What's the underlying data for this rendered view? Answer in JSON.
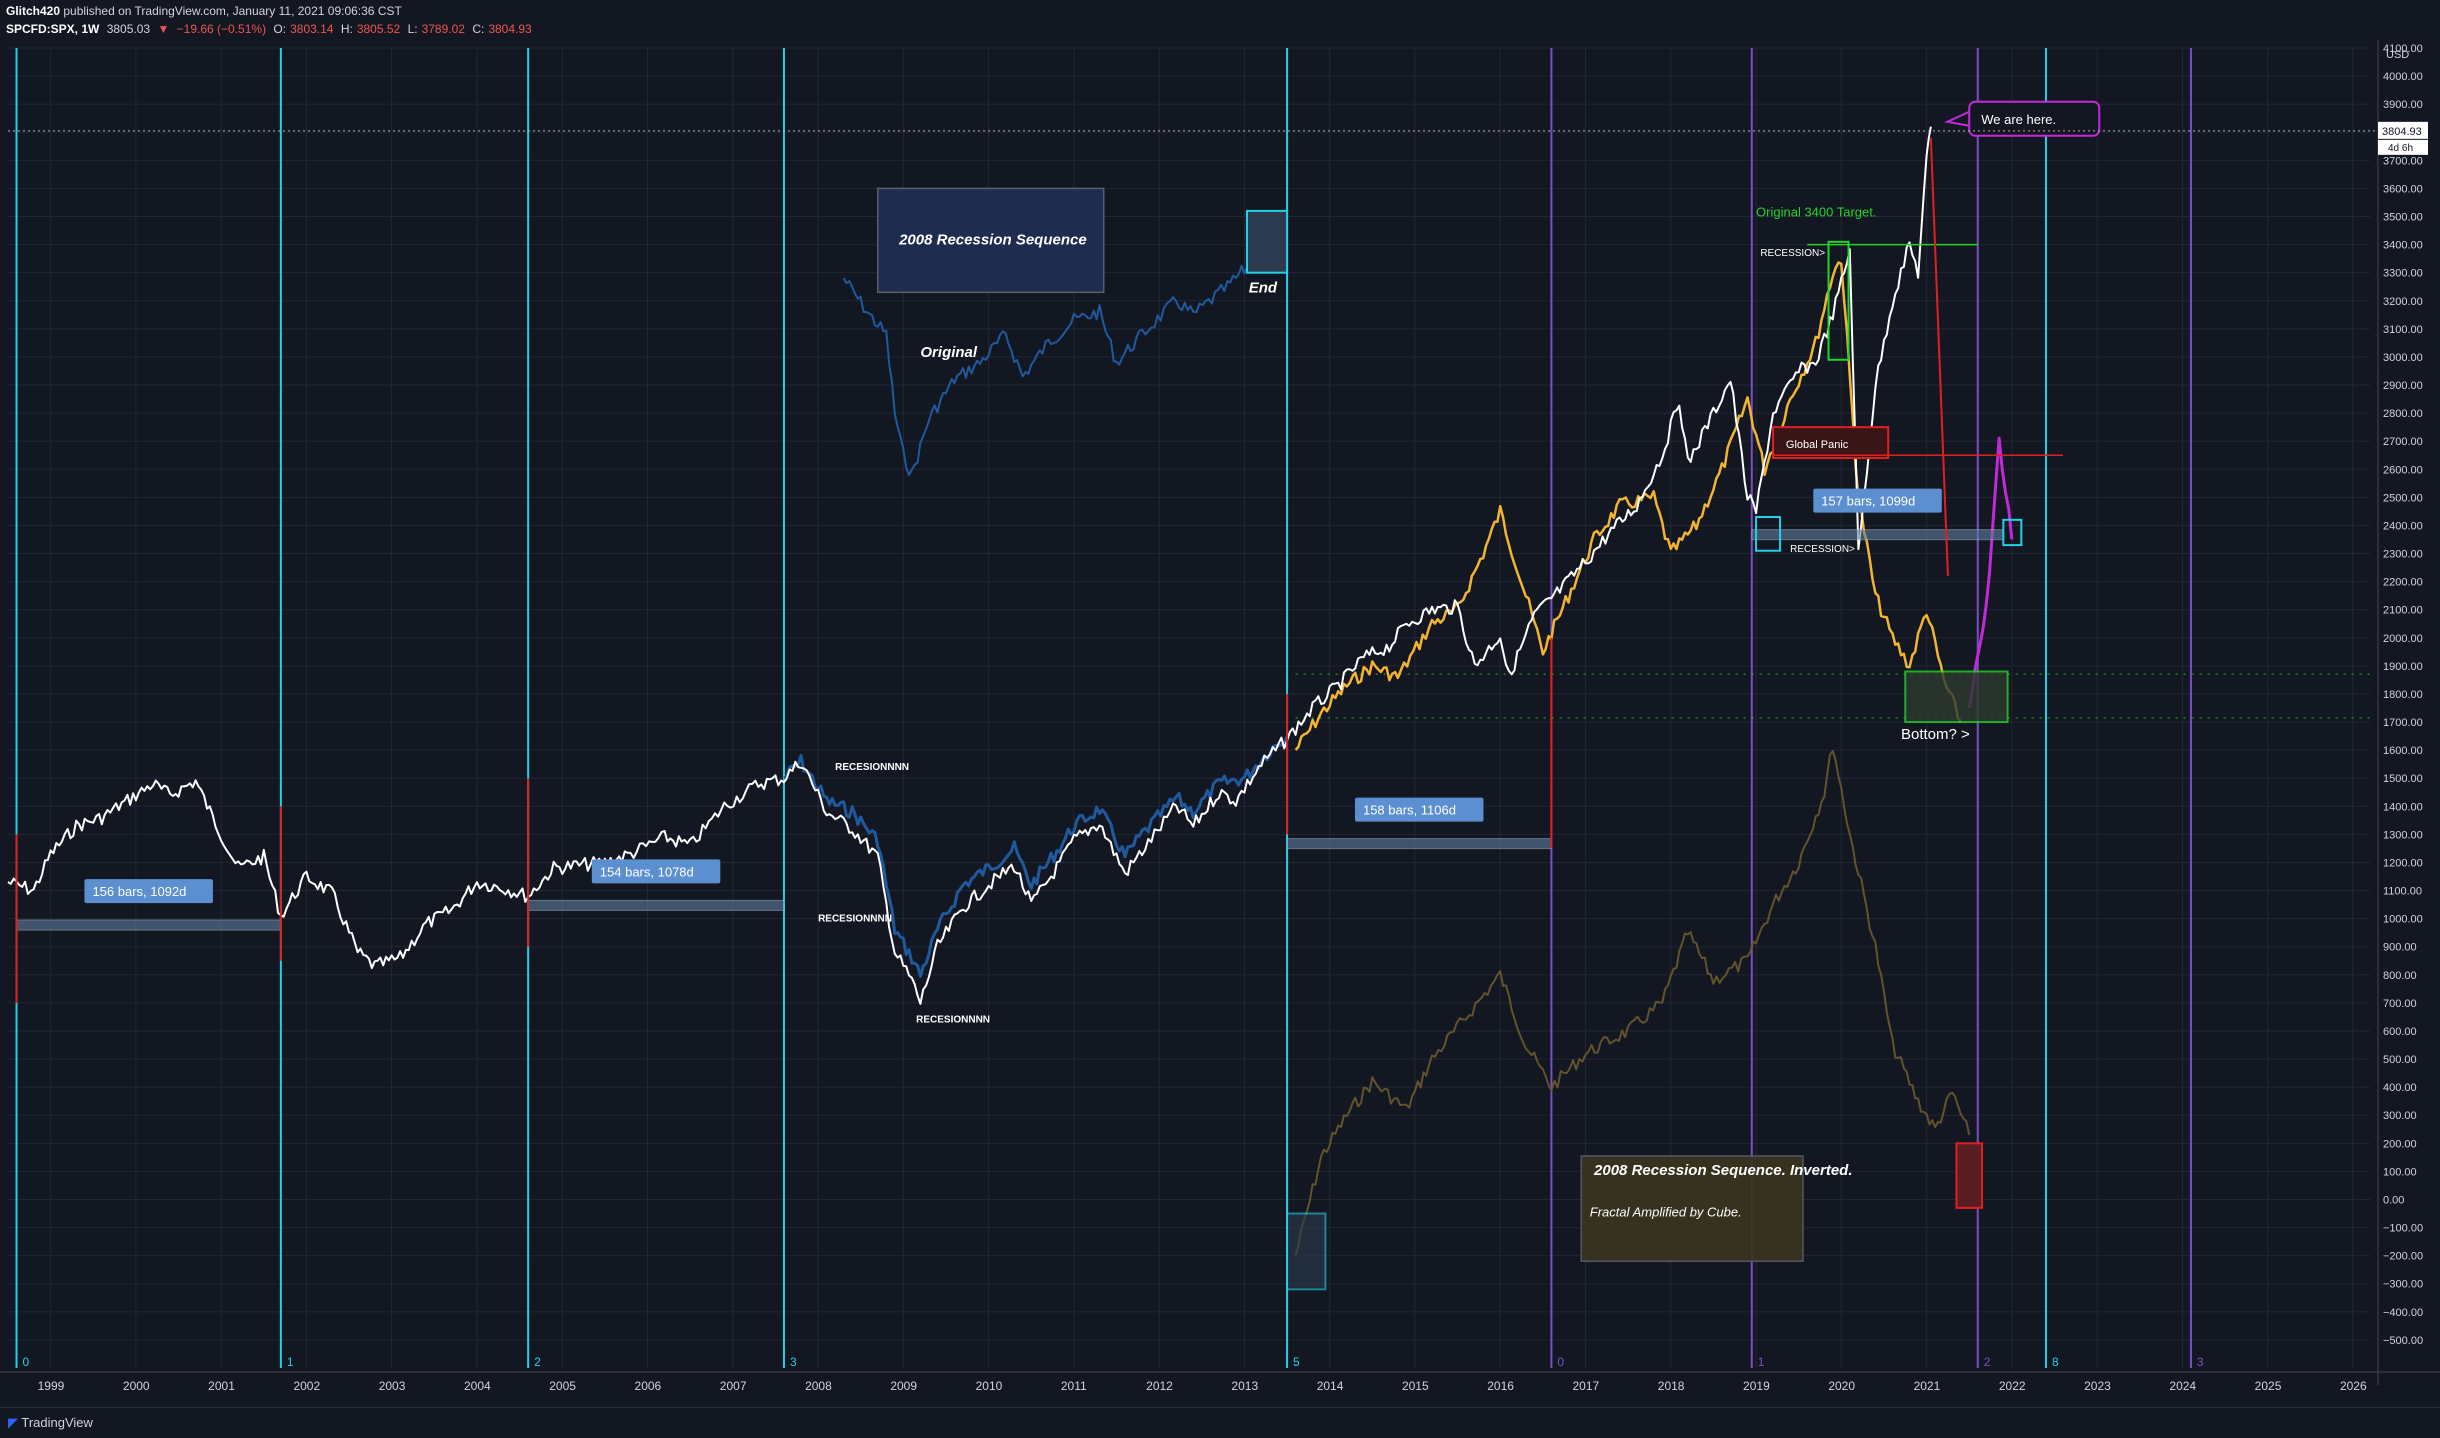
{
  "header": {
    "author": "Glitch420",
    "published": "published on TradingView.com, January 11, 2021 09:06:36 CST",
    "symbol": "SPCFD:SPX, 1W",
    "last": "3805.03",
    "change_arrow": "▼",
    "change": "−19.66 (−0.51%)",
    "o_label": "O:",
    "o": "3803.14",
    "h_label": "H:",
    "h": "3805.52",
    "l_label": "L:",
    "l": "3789.02",
    "c_label": "C:",
    "c": "3804.93"
  },
  "footer": {
    "brand": "TradingView"
  },
  "colors": {
    "background": "#131722",
    "price": "#ffffff",
    "original": "#1f5a9e",
    "gold": "#f3b333",
    "inverted": "#6b5a2e",
    "cycle_cyan": "#22d1e6",
    "cycle_purple": "#7b4fc4",
    "red": "#e02020",
    "green": "#24d32a",
    "magenta": "#c02ad8"
  },
  "chart_data": {
    "type": "line",
    "symbol": "SPCFD:SPX",
    "interval": "1W",
    "currency": "USD",
    "x_ticks": [
      "1999",
      "2000",
      "2001",
      "2002",
      "2003",
      "2004",
      "2005",
      "2006",
      "2007",
      "2008",
      "2009",
      "2010",
      "2011",
      "2012",
      "2013",
      "2014",
      "2015",
      "2016",
      "2017",
      "2018",
      "2019",
      "2020",
      "2021",
      "2022",
      "2023",
      "2024",
      "2025",
      "2026"
    ],
    "xlim": [
      1998.5,
      2026.2
    ],
    "ylim": [
      -600,
      4100
    ],
    "y_ticks": [
      4100,
      4000,
      3900,
      3800,
      3700,
      3600,
      3500,
      3400,
      3300,
      3200,
      3100,
      3000,
      2900,
      2800,
      2700,
      2600,
      2500,
      2400,
      2300,
      2200,
      2100,
      2000,
      1900,
      1800,
      1700,
      1600,
      1500,
      1400,
      1300,
      1200,
      1100,
      1000,
      900,
      800,
      700,
      600,
      500,
      400,
      300,
      200,
      100,
      0,
      -100,
      -200,
      -300,
      -400,
      -500
    ],
    "y_tick_labels": [
      "4100.00",
      "4000.00",
      "3900.00",
      "3800.00",
      "3700.00",
      "3600.00",
      "3500.00",
      "3400.00",
      "3300.00",
      "3200.00",
      "3100.00",
      "3000.00",
      "2900.00",
      "2800.00",
      "2700.00",
      "2600.00",
      "2500.00",
      "2400.00",
      "2300.00",
      "2200.00",
      "2100.00",
      "2000.00",
      "1900.00",
      "1800.00",
      "1700.00",
      "1600.00",
      "1500.00",
      "1400.00",
      "1300.00",
      "1200.00",
      "1100.00",
      "1000.00",
      "900.00",
      "800.00",
      "700.00",
      "600.00",
      "500.00",
      "400.00",
      "300.00",
      "200.00",
      "100.00",
      "0.00",
      "−100.00",
      "−200.00",
      "−300.00",
      "−400.00",
      "−500.00"
    ],
    "axis_label_top": "USD",
    "last_price_label": "3804.93",
    "countdown_label": "4d 6h",
    "grid": true,
    "series": [
      {
        "role": "price",
        "points": [
          [
            1998.5,
            1130
          ],
          [
            1998.8,
            1100
          ],
          [
            1999.0,
            1230
          ],
          [
            1999.3,
            1330
          ],
          [
            1999.6,
            1360
          ],
          [
            1999.9,
            1420
          ],
          [
            2000.2,
            1480
          ],
          [
            2000.4,
            1440
          ],
          [
            2000.7,
            1490
          ],
          [
            2000.9,
            1360
          ],
          [
            2001.2,
            1180
          ],
          [
            2001.5,
            1220
          ],
          [
            2001.7,
            1010
          ],
          [
            2002.0,
            1150
          ],
          [
            2002.3,
            1090
          ],
          [
            2002.6,
            880
          ],
          [
            2002.8,
            830
          ],
          [
            2003.1,
            860
          ],
          [
            2003.4,
            980
          ],
          [
            2003.7,
            1030
          ],
          [
            2004.0,
            1130
          ],
          [
            2004.3,
            1110
          ],
          [
            2004.6,
            1080
          ],
          [
            2004.9,
            1180
          ],
          [
            2005.2,
            1190
          ],
          [
            2005.5,
            1200
          ],
          [
            2005.8,
            1230
          ],
          [
            2006.2,
            1290
          ],
          [
            2006.5,
            1260
          ],
          [
            2006.9,
            1400
          ],
          [
            2007.3,
            1480
          ],
          [
            2007.6,
            1500
          ],
          [
            2007.8,
            1560
          ],
          [
            2008.1,
            1380
          ],
          [
            2008.4,
            1320
          ],
          [
            2008.7,
            1220
          ],
          [
            2008.9,
            880
          ],
          [
            2009.1,
            780
          ],
          [
            2009.2,
            700
          ],
          [
            2009.4,
            900
          ],
          [
            2009.7,
            1040
          ],
          [
            2010.0,
            1120
          ],
          [
            2010.3,
            1190
          ],
          [
            2010.5,
            1050
          ],
          [
            2010.8,
            1180
          ],
          [
            2011.0,
            1280
          ],
          [
            2011.3,
            1340
          ],
          [
            2011.6,
            1160
          ],
          [
            2011.8,
            1240
          ],
          [
            2012.2,
            1400
          ],
          [
            2012.4,
            1330
          ],
          [
            2012.7,
            1450
          ],
          [
            2012.9,
            1420
          ],
          [
            2013.2,
            1550
          ],
          [
            2013.5,
            1640
          ],
          [
            2013.8,
            1750
          ],
          [
            2014.1,
            1830
          ],
          [
            2014.4,
            1930
          ],
          [
            2014.7,
            1970
          ],
          [
            2014.9,
            2050
          ],
          [
            2015.2,
            2100
          ],
          [
            2015.5,
            2110
          ],
          [
            2015.7,
            1900
          ],
          [
            2016.0,
            2010
          ],
          [
            2016.1,
            1860
          ],
          [
            2016.4,
            2080
          ],
          [
            2016.7,
            2170
          ],
          [
            2017.0,
            2270
          ],
          [
            2017.3,
            2380
          ],
          [
            2017.6,
            2470
          ],
          [
            2017.9,
            2650
          ],
          [
            2018.1,
            2850
          ],
          [
            2018.2,
            2620
          ],
          [
            2018.5,
            2800
          ],
          [
            2018.7,
            2920
          ],
          [
            2018.9,
            2500
          ],
          [
            2019.0,
            2450
          ],
          [
            2019.2,
            2800
          ],
          [
            2019.5,
            2950
          ],
          [
            2019.7,
            2980
          ],
          [
            2019.9,
            3150
          ],
          [
            2020.1,
            3380
          ],
          [
            2020.2,
            2300
          ],
          [
            2020.4,
            2900
          ],
          [
            2020.6,
            3200
          ],
          [
            2020.8,
            3400
          ],
          [
            2020.9,
            3300
          ],
          [
            2021.0,
            3700
          ],
          [
            2021.05,
            3820
          ]
        ]
      },
      {
        "role": "original-2008-sequence",
        "points": [
          [
            2007.6,
            1500
          ],
          [
            2007.8,
            1560
          ],
          [
            2008.1,
            1420
          ],
          [
            2008.4,
            1380
          ],
          [
            2008.7,
            1280
          ],
          [
            2008.9,
            960
          ],
          [
            2009.1,
            860
          ],
          [
            2009.2,
            800
          ],
          [
            2009.4,
            960
          ],
          [
            2009.7,
            1120
          ],
          [
            2010.0,
            1180
          ],
          [
            2010.3,
            1250
          ],
          [
            2010.5,
            1120
          ],
          [
            2010.8,
            1240
          ],
          [
            2011.0,
            1330
          ],
          [
            2011.3,
            1390
          ],
          [
            2011.6,
            1220
          ],
          [
            2011.8,
            1300
          ],
          [
            2012.2,
            1430
          ],
          [
            2012.4,
            1380
          ],
          [
            2012.7,
            1480
          ],
          [
            2013.0,
            1500
          ],
          [
            2013.3,
            1600
          ],
          [
            2013.5,
            1650
          ]
        ]
      },
      {
        "role": "original-2008-sequence-overlay",
        "points": [
          [
            2008.3,
            3280
          ],
          [
            2008.6,
            3150
          ],
          [
            2008.8,
            3080
          ],
          [
            2008.9,
            2800
          ],
          [
            2009.0,
            2650
          ],
          [
            2009.1,
            2580
          ],
          [
            2009.3,
            2780
          ],
          [
            2009.6,
            2920
          ],
          [
            2009.9,
            2980
          ],
          [
            2010.2,
            3080
          ],
          [
            2010.4,
            2930
          ],
          [
            2010.7,
            3050
          ],
          [
            2011.0,
            3130
          ],
          [
            2011.3,
            3160
          ],
          [
            2011.5,
            2980
          ],
          [
            2011.8,
            3080
          ],
          [
            2012.2,
            3200
          ],
          [
            2012.4,
            3150
          ],
          [
            2012.8,
            3250
          ],
          [
            2013.1,
            3340
          ],
          [
            2013.3,
            3420
          ],
          [
            2013.4,
            3380
          ]
        ]
      },
      {
        "role": "gold-fractal",
        "points": [
          [
            2013.6,
            1600
          ],
          [
            2013.9,
            1730
          ],
          [
            2014.2,
            1830
          ],
          [
            2014.5,
            1900
          ],
          [
            2014.8,
            1860
          ],
          [
            2015.2,
            2050
          ],
          [
            2015.5,
            2100
          ],
          [
            2015.8,
            2300
          ],
          [
            2016.0,
            2450
          ],
          [
            2016.2,
            2250
          ],
          [
            2016.5,
            1950
          ],
          [
            2016.8,
            2150
          ],
          [
            2017.1,
            2350
          ],
          [
            2017.4,
            2470
          ],
          [
            2017.8,
            2500
          ],
          [
            2018.0,
            2300
          ],
          [
            2018.3,
            2400
          ],
          [
            2018.6,
            2600
          ],
          [
            2018.9,
            2850
          ],
          [
            2019.1,
            2600
          ],
          [
            2019.4,
            2850
          ],
          [
            2019.7,
            3050
          ],
          [
            2019.9,
            3300
          ],
          [
            2020.0,
            3350
          ],
          [
            2020.2,
            2500
          ],
          [
            2020.4,
            2150
          ],
          [
            2020.6,
            2000
          ],
          [
            2020.8,
            1900
          ],
          [
            2021.0,
            2100
          ],
          [
            2021.2,
            1850
          ],
          [
            2021.4,
            1700
          ]
        ]
      },
      {
        "role": "inverted-amplified",
        "points": [
          [
            2013.6,
            -200
          ],
          [
            2013.9,
            150
          ],
          [
            2014.2,
            300
          ],
          [
            2014.5,
            420
          ],
          [
            2014.9,
            320
          ],
          [
            2015.2,
            500
          ],
          [
            2015.6,
            650
          ],
          [
            2016.0,
            800
          ],
          [
            2016.3,
            550
          ],
          [
            2016.6,
            400
          ],
          [
            2017.0,
            520
          ],
          [
            2017.5,
            600
          ],
          [
            2017.9,
            700
          ],
          [
            2018.2,
            950
          ],
          [
            2018.5,
            780
          ],
          [
            2018.9,
            850
          ],
          [
            2019.2,
            1050
          ],
          [
            2019.5,
            1200
          ],
          [
            2019.8,
            1450
          ],
          [
            2019.9,
            1620
          ],
          [
            2020.1,
            1300
          ],
          [
            2020.4,
            900
          ],
          [
            2020.6,
            550
          ],
          [
            2020.9,
            350
          ],
          [
            2021.1,
            250
          ],
          [
            2021.3,
            380
          ],
          [
            2021.5,
            230
          ]
        ]
      },
      {
        "role": "purple-projection",
        "points": [
          [
            2021.5,
            1750
          ],
          [
            2021.7,
            2100
          ],
          [
            2021.85,
            2700
          ],
          [
            2022.0,
            2350
          ]
        ]
      }
    ],
    "cycle_lines": [
      {
        "x": 1998.6,
        "color": "cyan",
        "label": "0"
      },
      {
        "x": 2001.7,
        "color": "cyan",
        "label": "1"
      },
      {
        "x": 2004.6,
        "color": "cyan",
        "label": "2"
      },
      {
        "x": 2007.6,
        "color": "cyan",
        "label": "3"
      },
      {
        "x": 2013.5,
        "color": "cyan",
        "label": "5"
      },
      {
        "x": 2016.6,
        "color": "purple",
        "label": "0"
      },
      {
        "x": 2018.95,
        "color": "purple",
        "label": "1"
      },
      {
        "x": 2021.6,
        "color": "purple",
        "label": "2"
      },
      {
        "x": 2022.4,
        "color": "cyan",
        "label": "8"
      },
      {
        "x": 2024.1,
        "color": "purple",
        "label": "3"
      }
    ],
    "measures": [
      {
        "label": "156 bars, 1092d",
        "x0": 1998.6,
        "x1": 2001.7,
        "y": 970
      },
      {
        "label": "154 bars, 1078d",
        "x0": 2004.6,
        "x1": 2007.6,
        "y": 1040
      },
      {
        "label": "158 bars, 1106d",
        "x0": 2013.5,
        "x1": 2016.6,
        "y": 1260
      },
      {
        "label": "157 bars, 1099d",
        "x0": 2018.95,
        "x1": 2021.9,
        "y": 2360
      }
    ],
    "annotations": [
      {
        "text": "2008 Recession Sequence",
        "kind": "box-title"
      },
      {
        "text": "Original",
        "kind": "label"
      },
      {
        "text": "End",
        "kind": "label"
      },
      {
        "text": "RECESIONNNN",
        "kind": "label",
        "id": "r1"
      },
      {
        "text": "RECESIONNNN",
        "kind": "label",
        "id": "r2"
      },
      {
        "text": "RECESIONNNN",
        "kind": "label",
        "id": "r3"
      },
      {
        "text": "Original 3400 Target.",
        "kind": "label"
      },
      {
        "text": "RECESSION>",
        "kind": "label",
        "id": "s1"
      },
      {
        "text": "RECESSION>",
        "kind": "label",
        "id": "s2"
      },
      {
        "text": "Global Panic",
        "kind": "label"
      },
      {
        "text": "Bottom? >",
        "kind": "label"
      },
      {
        "text": "We are here.",
        "kind": "callout"
      },
      {
        "text": "2008 Recession Sequence. Inverted.",
        "kind": "box-title"
      },
      {
        "text": "Fractal Amplified by Cube.",
        "kind": "box-body"
      }
    ]
  }
}
